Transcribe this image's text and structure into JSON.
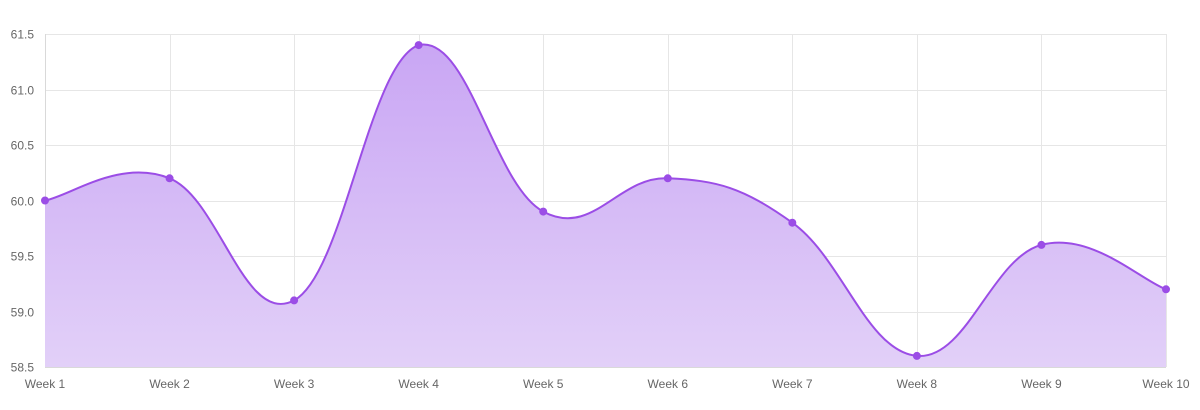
{
  "chart_data": {
    "type": "area",
    "categories": [
      "Week 1",
      "Week 2",
      "Week 3",
      "Week 4",
      "Week 5",
      "Week 6",
      "Week 7",
      "Week 8",
      "Week 9",
      "Week 10"
    ],
    "series": [
      {
        "values": [
          60.0,
          60.2,
          59.1,
          61.4,
          59.9,
          60.2,
          59.8,
          58.6,
          59.6,
          59.2
        ]
      }
    ],
    "ylim": [
      58.5,
      61.5
    ],
    "yticks": [
      "58.5",
      "59.0",
      "59.5",
      "60.0",
      "60.5",
      "61.0",
      "61.5"
    ],
    "grid": true,
    "legend": "none",
    "colors": {
      "line": "#9b4de6",
      "point": "#9b4de6",
      "fill_top": "#c9a6f4",
      "fill_bottom": "#e2d0f8"
    }
  }
}
